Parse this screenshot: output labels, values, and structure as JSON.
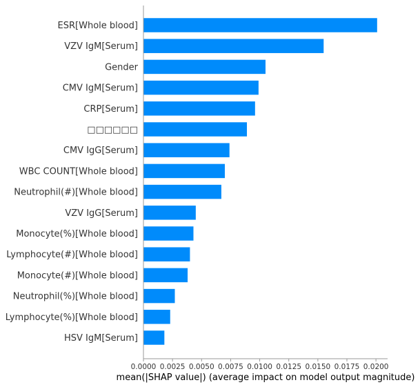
{
  "chart_data": {
    "type": "bar",
    "orientation": "horizontal",
    "categories": [
      "ESR[Whole blood]",
      "VZV IgM[Serum]",
      "Gender",
      "CMV IgM[Serum]",
      "CRP[Serum]",
      "□□□□□□",
      "CMV IgG[Serum]",
      "WBC COUNT[Whole blood]",
      "Neutrophil(#)[Whole blood]",
      "VZV IgG[Serum]",
      "Monocyte(%)[Whole blood]",
      "Lymphocyte(#)[Whole blood]",
      "Monocyte(#)[Whole blood]",
      "Neutrophil(%)[Whole blood]",
      "Lymphocyte(%)[Whole blood]",
      "HSV IgM[Serum]"
    ],
    "values": [
      0.0201,
      0.0155,
      0.0105,
      0.0099,
      0.0096,
      0.0089,
      0.0074,
      0.007,
      0.0067,
      0.0045,
      0.0043,
      0.004,
      0.0038,
      0.0027,
      0.0023,
      0.0018
    ],
    "xlabel": "mean(|SHAP value|) (average impact on model output magnitude)",
    "ylabel": "",
    "xlim": [
      0,
      0.021
    ],
    "xticks": [
      "0.0000",
      "0.0025",
      "0.0050",
      "0.0075",
      "0.0100",
      "0.0125",
      "0.0150",
      "0.0175",
      "0.0200"
    ],
    "tick_values": [
      0,
      0.0025,
      0.005,
      0.0075,
      0.01,
      0.0125,
      0.015,
      0.0175,
      0.02
    ],
    "bar_color": "#008bfb",
    "axis_color": "#999999",
    "grid": false
  }
}
